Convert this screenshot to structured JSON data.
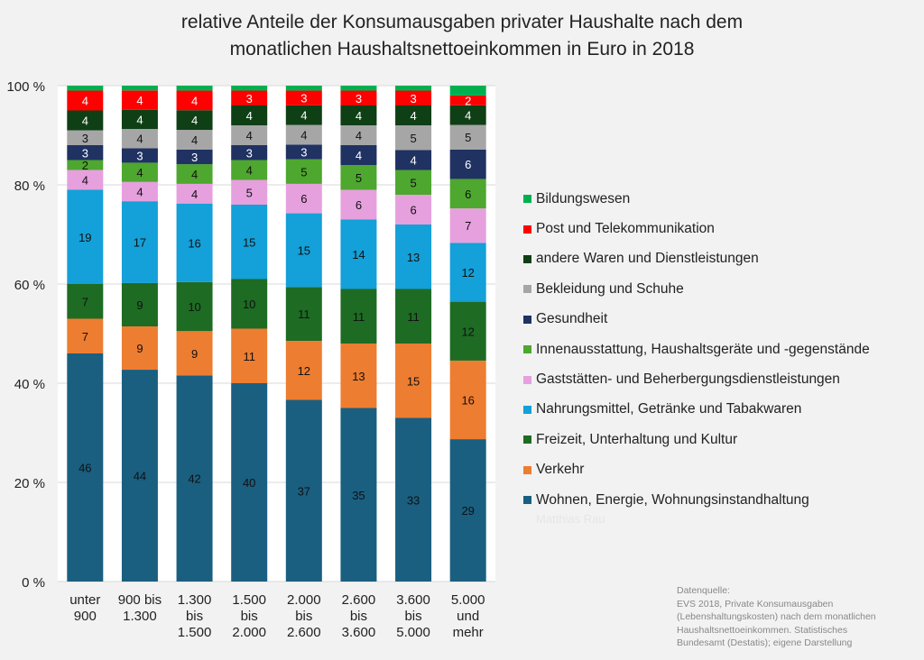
{
  "chart_data": {
    "type": "bar",
    "stacked": "percent",
    "title": [
      "relative Anteile der Konsumausgaben privater Haushalte nach dem",
      "monatlichen Haushaltsnettoeinkommen in Euro in 2018"
    ],
    "categories": [
      [
        "unter",
        "900"
      ],
      [
        "900 bis",
        "1.300"
      ],
      [
        "1.300",
        "bis",
        "1.500"
      ],
      [
        "1.500",
        "bis",
        "2.000"
      ],
      [
        "2.000",
        "bis",
        "2.600"
      ],
      [
        "2.600",
        "bis",
        "3.600"
      ],
      [
        "3.600",
        "bis",
        "5.000"
      ],
      [
        "5.000",
        "und",
        "mehr"
      ]
    ],
    "yticks": [
      "0 %",
      "20 %",
      "40 %",
      "60 %",
      "80 %",
      "100 %"
    ],
    "ylim": [
      0,
      100
    ],
    "grid": true,
    "legend_position": "right",
    "series": [
      {
        "name": "Wohnen, Energie, Wohnungsinstandhaltung",
        "color": "#1a5f80",
        "label_color": "#111",
        "values": [
          46,
          44,
          42,
          40,
          37,
          35,
          33,
          29
        ],
        "labeled": true
      },
      {
        "name": "Verkehr",
        "color": "#ed7d31",
        "label_color": "#111",
        "values": [
          7,
          9,
          9,
          11,
          12,
          13,
          15,
          16
        ],
        "labeled": true
      },
      {
        "name": "Freizeit, Unterhaltung und Kultur",
        "color": "#1e6b24",
        "label_color": "#111",
        "values": [
          7,
          9,
          10,
          10,
          11,
          11,
          11,
          12
        ],
        "labeled": true
      },
      {
        "name": "Nahrungsmittel, Getränke und Tabakwaren",
        "color": "#14a0d8",
        "label_color": "#111",
        "values": [
          19,
          17,
          16,
          15,
          15,
          14,
          13,
          12
        ],
        "labeled": true
      },
      {
        "name": "Gaststätten- und Beherbergungsdienstleistungen",
        "color": "#e6a0de",
        "label_color": "#111",
        "values": [
          4,
          4,
          4,
          5,
          6,
          6,
          6,
          7
        ],
        "labeled": true
      },
      {
        "name": "Innenausstattung, Haushaltsgeräte und -gegenstände",
        "color": "#4ea72e",
        "label_color": "#111",
        "values": [
          2,
          4,
          4,
          4,
          5,
          5,
          5,
          6
        ],
        "labeled": true
      },
      {
        "name": "Gesundheit",
        "color": "#1f3262",
        "label_color": "#fff",
        "values": [
          3,
          3,
          3,
          3,
          3,
          4,
          4,
          6
        ],
        "labeled": true
      },
      {
        "name": "Bekleidung und Schuhe",
        "color": "#a6a6a6",
        "label_color": "#111",
        "values": [
          3,
          4,
          4,
          4,
          4,
          4,
          5,
          5
        ],
        "labeled": true
      },
      {
        "name": "andere Waren und Dienstleistungen",
        "color": "#0f3f15",
        "label_color": "#fff",
        "values": [
          4,
          4,
          4,
          4,
          4,
          4,
          4,
          4
        ],
        "labeled": true
      },
      {
        "name": "Post und Telekommunikation",
        "color": "#ff0000",
        "label_color": "#fff",
        "values": [
          4,
          4,
          4,
          3,
          3,
          3,
          3,
          2
        ],
        "labeled": true
      },
      {
        "name": "Bildungswesen",
        "color": "#00b050",
        "label_color": "#111",
        "values": [
          1,
          1,
          1,
          1,
          1,
          1,
          1,
          2
        ],
        "labeled": false
      }
    ]
  },
  "watermark": "Matthias Rau",
  "source": [
    "Datenquelle:",
    "EVS 2018, Private Konsumausgaben",
    "(Lebenshaltungskosten) nach dem monatlichen",
    "Haushaltsnettoeinkommen. Statistisches",
    "Bundesamt (Destatis); eigene Darstellung"
  ]
}
